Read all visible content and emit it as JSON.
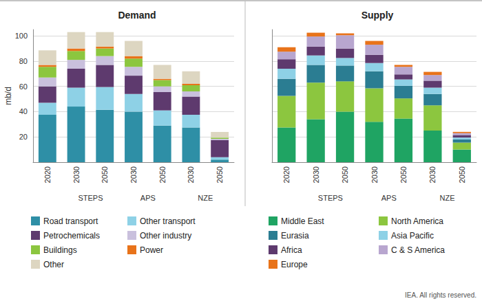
{
  "chart_data": [
    {
      "type": "bar",
      "title": "Demand",
      "ylabel": "mb/d",
      "categories": [
        "2020",
        "2030",
        "2050",
        "2030",
        "2050",
        "2030",
        "2050"
      ],
      "groups": [
        null,
        "STEPS",
        "STEPS",
        "APS",
        "APS",
        "NZE",
        "NZE"
      ],
      "ylim": [
        0,
        105
      ],
      "yticks": [
        20,
        40,
        60,
        80,
        100
      ],
      "grid": true,
      "stacked": true,
      "legend": "bottom",
      "series": [
        {
          "name": "Road transport",
          "color": "#2e8fa6",
          "values": [
            37.5,
            44,
            41.5,
            40,
            29,
            27.5,
            2
          ]
        },
        {
          "name": "Other transport",
          "color": "#8ed1e6",
          "values": [
            9.5,
            15,
            18,
            14,
            12,
            10,
            2
          ]
        },
        {
          "name": "Petrochemicals",
          "color": "#5e3a6e",
          "values": [
            13,
            15,
            17.5,
            14.5,
            14.5,
            14.5,
            13.5
          ]
        },
        {
          "name": "Other industry",
          "color": "#c9c0dd",
          "values": [
            7,
            7,
            7,
            7,
            4.5,
            4,
            1
          ]
        },
        {
          "name": "Buildings",
          "color": "#8cc63f",
          "values": [
            8.5,
            7,
            6,
            6.5,
            5,
            5,
            1
          ]
        },
        {
          "name": "Power",
          "color": "#e8731a",
          "values": [
            1.5,
            2,
            1.5,
            2,
            1,
            1,
            0
          ]
        },
        {
          "name": "Other",
          "color": "#ddd6c1",
          "values": [
            11.5,
            13,
            11.5,
            12,
            11,
            10,
            4.5
          ]
        }
      ]
    },
    {
      "type": "bar",
      "title": "Supply",
      "categories": [
        "2020",
        "2030",
        "2050",
        "2030",
        "2050",
        "2030",
        "2050"
      ],
      "groups": [
        null,
        "STEPS",
        "STEPS",
        "APS",
        "APS",
        "NZE",
        "NZE"
      ],
      "ylim": [
        0,
        105
      ],
      "yticks": [
        20,
        40,
        60,
        80,
        100
      ],
      "grid": true,
      "stacked": true,
      "legend": "bottom",
      "tick_labels": "x",
      "series": [
        {
          "name": "Middle East",
          "color": "#1fa463",
          "values": [
            27.5,
            34,
            40,
            32,
            34.5,
            25,
            10
          ]
        },
        {
          "name": "North America",
          "color": "#8cc63f",
          "values": [
            25,
            29,
            24,
            26.5,
            16,
            20,
            5.5
          ]
        },
        {
          "name": "Eurasia",
          "color": "#2b7d92",
          "values": [
            13.5,
            14,
            12.5,
            13.5,
            10,
            9,
            2.5
          ]
        },
        {
          "name": "Asia Pacific",
          "color": "#8ed1e6",
          "values": [
            8,
            7.5,
            6,
            6.5,
            5,
            5,
            1.5
          ]
        },
        {
          "name": "Africa",
          "color": "#5e3a6e",
          "values": [
            7.5,
            7,
            7.5,
            6.5,
            4,
            5.5,
            2
          ]
        },
        {
          "name": "C & S America",
          "color": "#b8a6cf",
          "values": [
            6,
            8,
            10.5,
            8,
            6,
            4.5,
            1.5
          ]
        },
        {
          "name": "Europe",
          "color": "#e8731a",
          "values": [
            3.5,
            3,
            1.5,
            3,
            1.5,
            2.5,
            1
          ]
        }
      ]
    }
  ],
  "footer": "IEA. All rights reserved."
}
